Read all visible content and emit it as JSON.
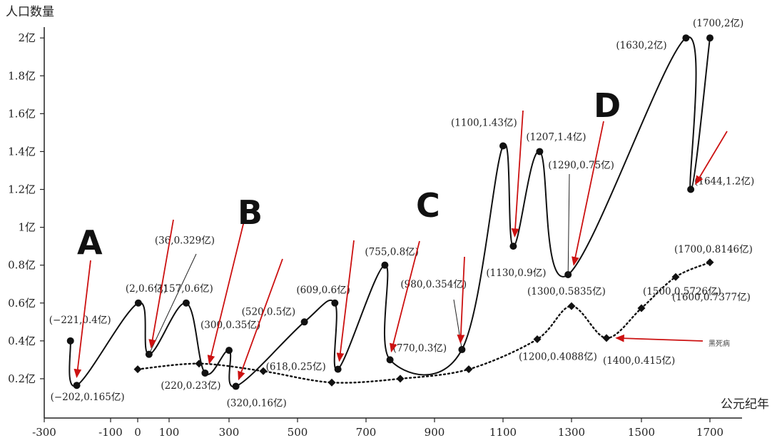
{
  "chart_data": {
    "type": "line",
    "ylabel": "人口数量",
    "xlabel": "公元纪年",
    "x_ticks": [
      -300,
      -100,
      0,
      100,
      300,
      500,
      700,
      900,
      1100,
      1300,
      1500,
      1700
    ],
    "x_tick_labels": [
      "-300",
      "-100",
      "0",
      "100",
      "300",
      "500",
      "700",
      "900",
      "1100",
      "1300",
      "1500",
      "1700"
    ],
    "y_ticks": [
      0.2,
      0.4,
      0.6,
      0.8,
      1.0,
      1.2,
      1.4,
      1.6,
      1.8,
      2.0
    ],
    "y_tick_labels": [
      "0.2亿",
      "0.4亿",
      "0.6亿",
      "0.8亿",
      "1亿",
      "1.2亿",
      "1.4亿",
      "1.6亿",
      "1.8亿",
      "2亿"
    ],
    "series": [
      {
        "style": "solid",
        "marker": "circle",
        "color": "#111111",
        "points": [
          {
            "x": -221,
            "y": 0.4,
            "label": "(−221,0.4亿)"
          },
          {
            "x": -202,
            "y": 0.165,
            "label": "(−202,0.165亿)"
          },
          {
            "x": 2,
            "y": 0.6,
            "label": "(2,0.6亿)"
          },
          {
            "x": 36,
            "y": 0.329,
            "label": "(36,0.329亿)"
          },
          {
            "x": 157,
            "y": 0.6,
            "label": "(157,0.6亿)"
          },
          {
            "x": 220,
            "y": 0.23,
            "label": "(220,0.23亿)"
          },
          {
            "x": 300,
            "y": 0.35,
            "label": "(300,0.35亿)"
          },
          {
            "x": 320,
            "y": 0.16,
            "label": "(320,0.16亿)"
          },
          {
            "x": 520,
            "y": 0.5,
            "label": "(520,0.5亿)"
          },
          {
            "x": 609,
            "y": 0.6,
            "label": "(609,0.6亿)"
          },
          {
            "x": 618,
            "y": 0.25,
            "label": "(618,0.25亿)"
          },
          {
            "x": 755,
            "y": 0.8,
            "label": "(755,0.8亿)"
          },
          {
            "x": 770,
            "y": 0.3,
            "label": "(770,0.3亿)"
          },
          {
            "x": 980,
            "y": 0.354,
            "label": "(980,0.354亿)"
          },
          {
            "x": 1100,
            "y": 1.43,
            "label": "(1100,1.43亿)"
          },
          {
            "x": 1130,
            "y": 0.9,
            "label": "(1130,0.9亿)"
          },
          {
            "x": 1207,
            "y": 1.4,
            "label": "(1207,1.4亿)"
          },
          {
            "x": 1290,
            "y": 0.75,
            "label": "(1290,0.75亿)"
          },
          {
            "x": 1630,
            "y": 2.0,
            "label": "(1630,2亿)"
          },
          {
            "x": 1644,
            "y": 1.2,
            "label": "(1644,1.2亿)"
          },
          {
            "x": 1700,
            "y": 2.0,
            "label": "(1700,2亿)"
          }
        ]
      },
      {
        "style": "dotted",
        "marker": "diamond",
        "color": "#111111",
        "points": [
          {
            "x": 0,
            "y": 0.25,
            "label": ""
          },
          {
            "x": 200,
            "y": 0.28,
            "label": ""
          },
          {
            "x": 400,
            "y": 0.24,
            "label": ""
          },
          {
            "x": 600,
            "y": 0.18,
            "label": ""
          },
          {
            "x": 800,
            "y": 0.2,
            "label": ""
          },
          {
            "x": 1000,
            "y": 0.25,
            "label": ""
          },
          {
            "x": 1200,
            "y": 0.4088,
            "label": "(1200,0.4088亿)"
          },
          {
            "x": 1300,
            "y": 0.5835,
            "label": "(1300,0.5835亿)"
          },
          {
            "x": 1400,
            "y": 0.415,
            "label": "(1400,0.415亿)"
          },
          {
            "x": 1500,
            "y": 0.5726,
            "label": "(1500,0.5726亿)"
          },
          {
            "x": 1600,
            "y": 0.7377,
            "label": "(1600,0.7377亿)"
          },
          {
            "x": 1700,
            "y": 0.8146,
            "label": "(1700,0.8146亿)"
          }
        ]
      }
    ],
    "annotations": {
      "letters": [
        "A",
        "B",
        "C",
        "D"
      ],
      "note": "黑死病",
      "arrow_color": "#cc1111"
    }
  }
}
